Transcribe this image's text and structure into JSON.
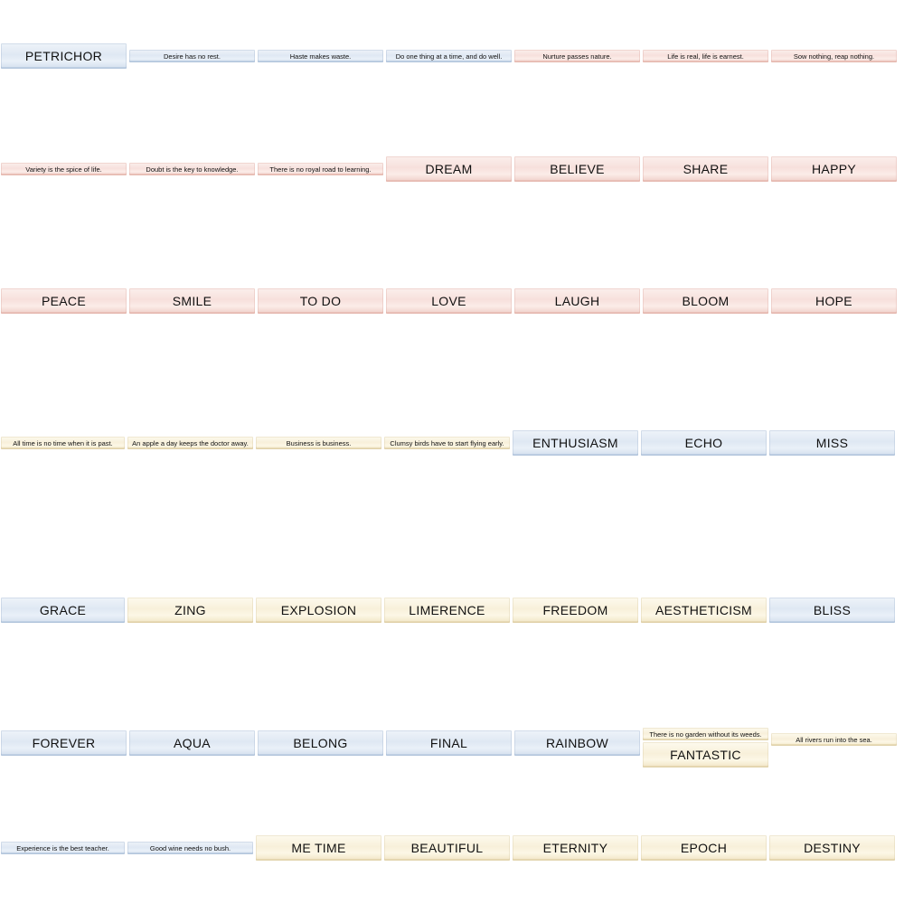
{
  "stickers": {
    "r1": [
      "PETRICHOR",
      "Desire has no rest.",
      "Haste makes waste.",
      "Do one thing at a time, and do well.",
      "Nurture passes nature.",
      "Life is real, life is earnest.",
      "Sow nothing, reap nothing."
    ],
    "r2": [
      "Variety is the spice of life.",
      "Doubt is the key to knowledge.",
      "There is no royal road to learning.",
      "DREAM",
      "BELIEVE",
      "SHARE",
      "HAPPY"
    ],
    "r3": [
      "PEACE",
      "SMILE",
      "TO DO",
      "LOVE",
      "LAUGH",
      "BLOOM",
      "HOPE"
    ],
    "r4": [
      "All time is no time when it is past.",
      "An apple a day keeps the doctor away.",
      "Business is business.",
      "Clumsy birds have to start flying early.",
      "ENTHUSIASM",
      "ECHO",
      "MISS"
    ],
    "r5": [
      "GRACE",
      "ZING",
      "EXPLOSION",
      "LIMERENCE",
      "FREEDOM",
      "AESTHETICISM",
      "BLISS"
    ],
    "r6": [
      "FOREVER",
      "AQUA",
      "BELONG",
      "FINAL",
      "RAINBOW",
      "There is no garden without its weeds.",
      "FANTASTIC",
      "All rivers run into the sea."
    ],
    "r7": [
      "Experience is the best teacher.",
      "Good wine needs no bush.",
      "ME TIME",
      "BEAUTIFUL",
      "ETERNITY",
      "EPOCH",
      "DESTINY"
    ]
  },
  "colors": {
    "blue": "#dfe8f3",
    "pink": "#f7e0dc",
    "cream": "#f8f0da"
  }
}
